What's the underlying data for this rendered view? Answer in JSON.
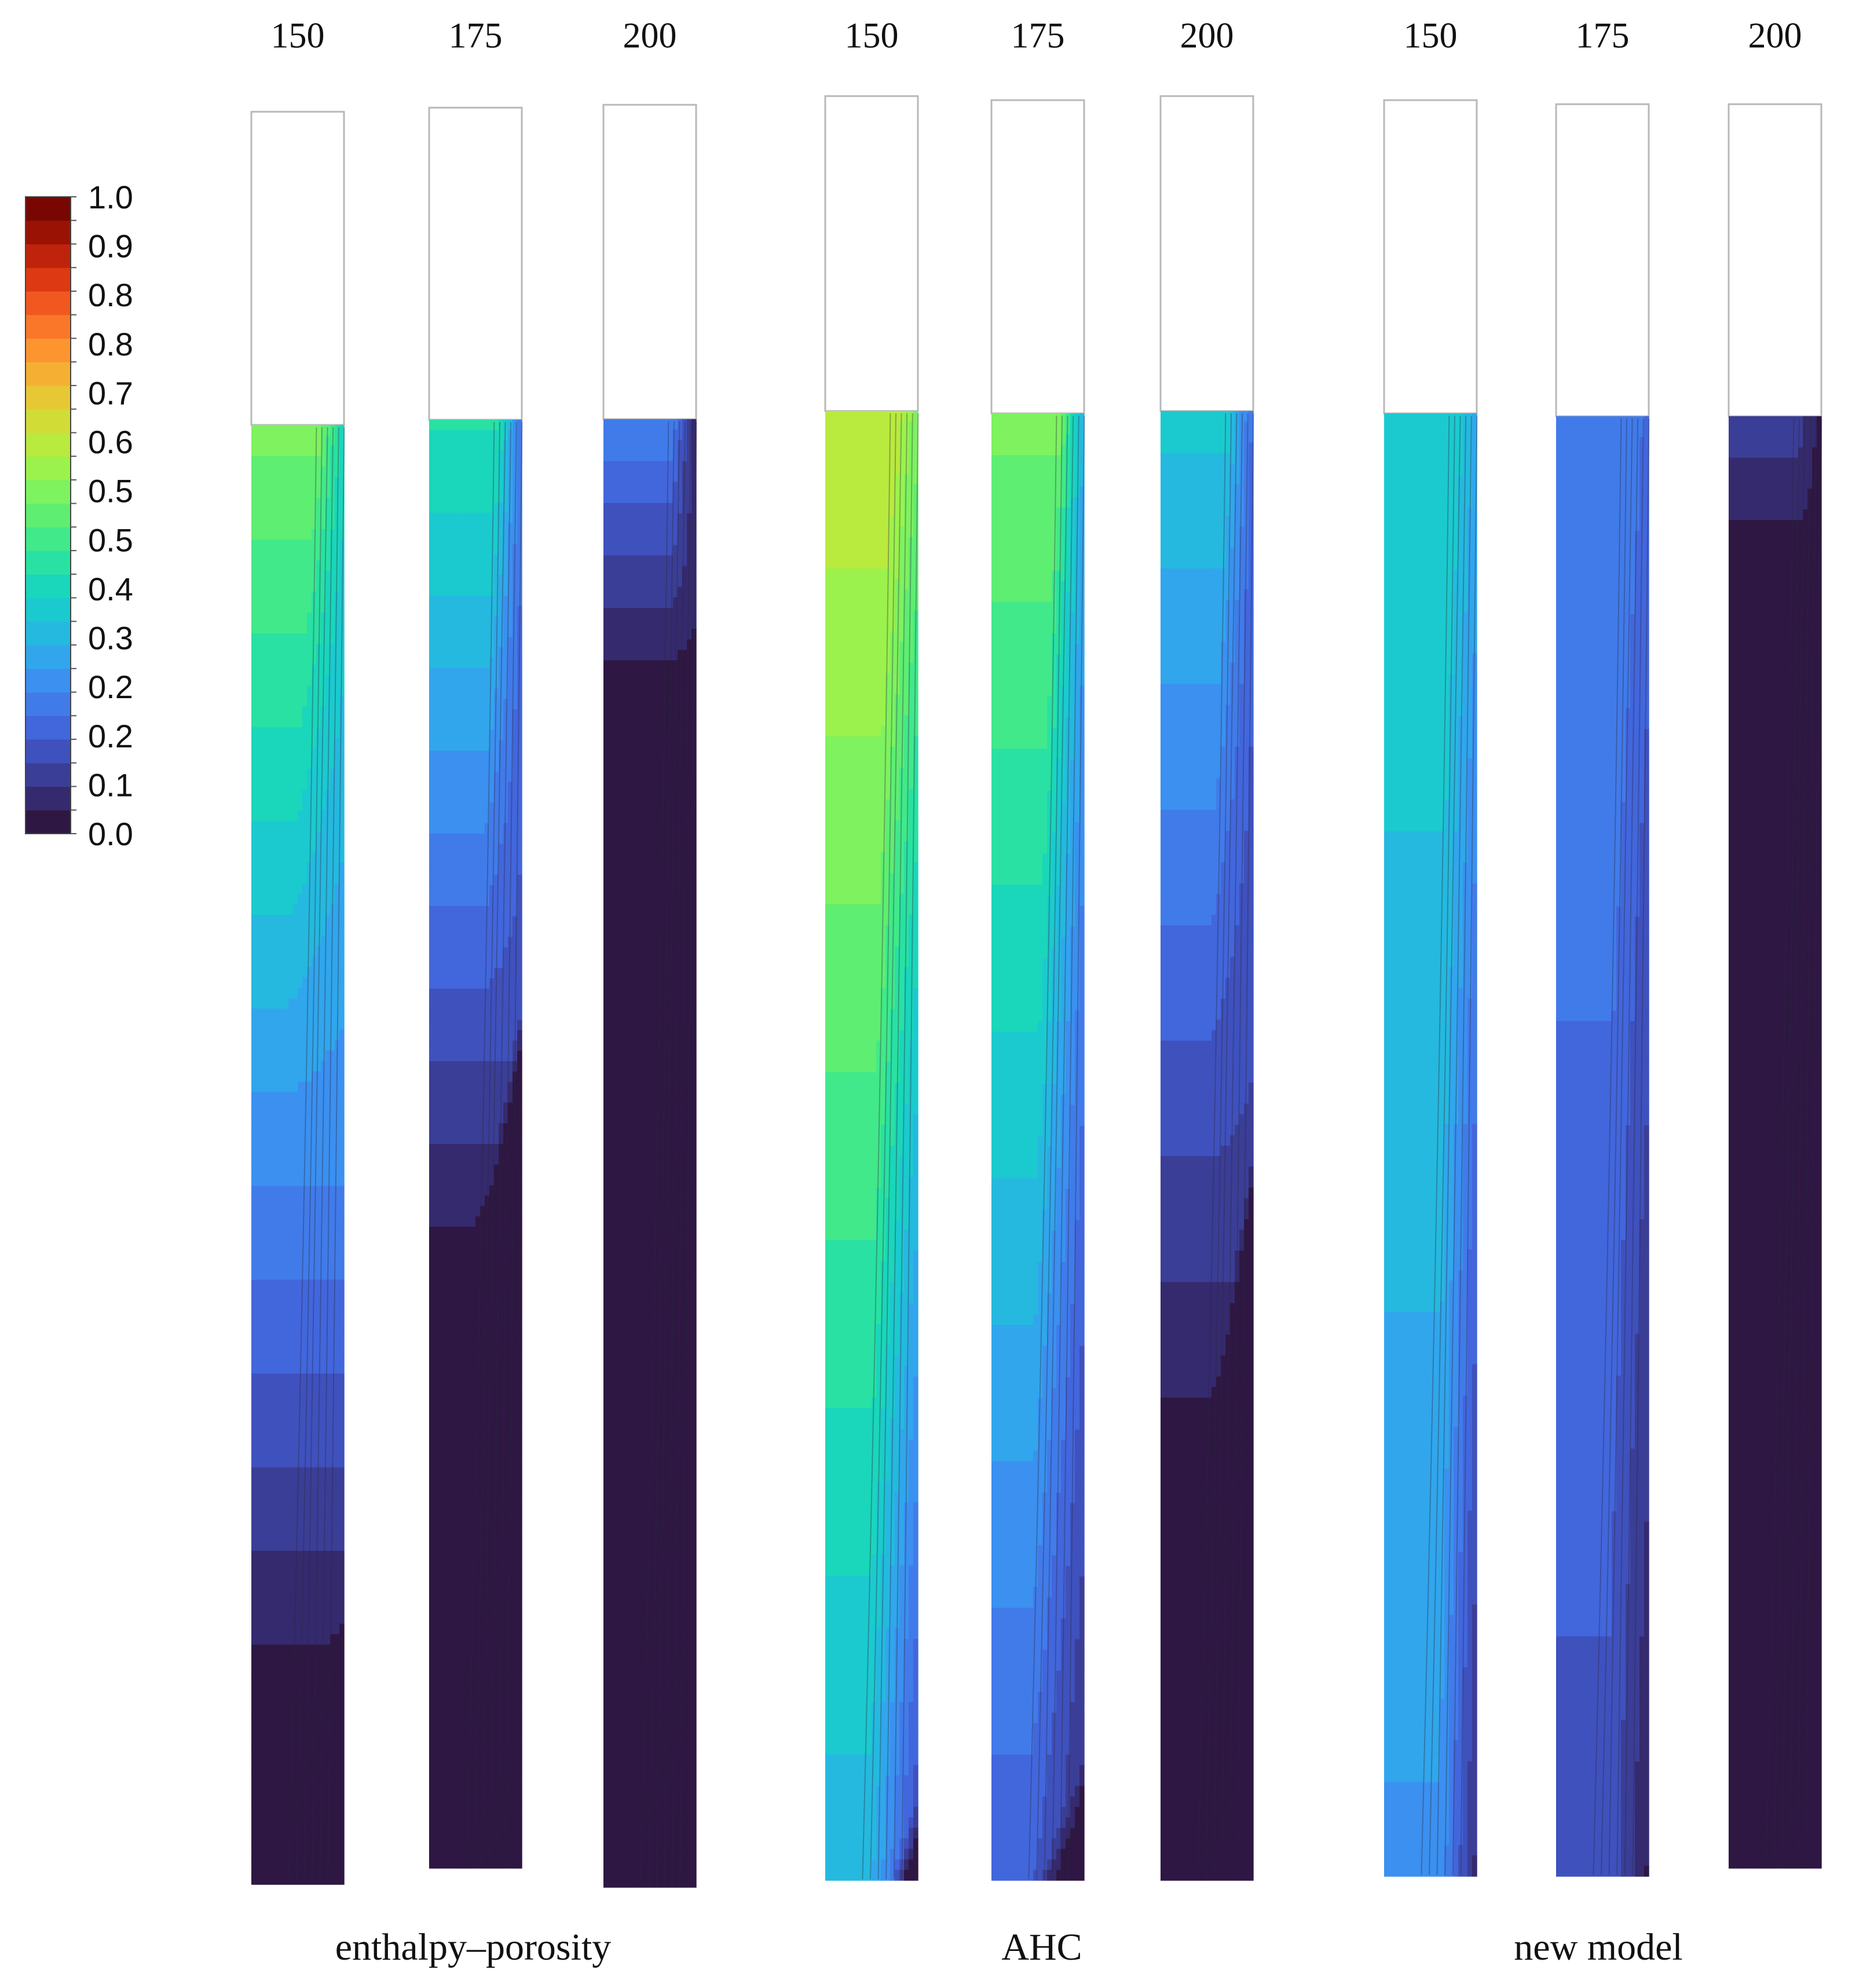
{
  "colorbar": {
    "tick_labels": [
      "1.0",
      "0.9",
      "0.8",
      "0.8",
      "0.7",
      "0.6",
      "0.5",
      "0.5",
      "0.4",
      "0.3",
      "0.2",
      "0.2",
      "0.1",
      "0.0"
    ],
    "range": [
      0,
      1
    ],
    "levels": 25,
    "palette": [
      "#2e1742",
      "#352a6e",
      "#3b3e96",
      "#3f51bd",
      "#4266dc",
      "#417bea",
      "#3b90f0",
      "#31a6ec",
      "#25b9df",
      "#1bcacf",
      "#1ad6bb",
      "#29e1a3",
      "#41e98a",
      "#5eee72",
      "#7ef25f",
      "#9cf24c",
      "#b9ea3e",
      "#d2dc37",
      "#e6c835",
      "#f5b033",
      "#fc9530",
      "#fa772a",
      "#f0581f",
      "#dd3a14",
      "#c0230b",
      "#9a1204",
      "#780701"
    ]
  },
  "groups": [
    {
      "label": "enthalpy–porosity",
      "columns": [
        {
          "label": "150",
          "top_value": 0.55,
          "wall_value": 0.4,
          "bottom_value": 0.0,
          "solid_front": 0.9,
          "spread": 0.8
        },
        {
          "label": "175",
          "top_value": 0.43,
          "wall_value": 0.2,
          "bottom_value": 0.0,
          "solid_front": 0.61,
          "spread": 0.4
        },
        {
          "label": "200",
          "top_value": 0.22,
          "wall_value": 0.05,
          "bottom_value": 0.0,
          "solid_front": 0.2,
          "spread": 0.1
        }
      ]
    },
    {
      "label": "AHC",
      "columns": [
        {
          "label": "150",
          "top_value": 0.65,
          "wall_value": 0.55,
          "bottom_value": 0.3,
          "solid_front": 1.05,
          "spread": 0.45
        },
        {
          "label": "175",
          "top_value": 0.55,
          "wall_value": 0.3,
          "bottom_value": 0.15,
          "solid_front": 1.02,
          "spread": 0.55
        },
        {
          "label": "200",
          "top_value": 0.36,
          "wall_value": 0.18,
          "bottom_value": 0.0,
          "solid_front": 0.75,
          "spread": 0.5
        }
      ]
    },
    {
      "label": "new model",
      "columns": [
        {
          "label": "150",
          "top_value": 0.38,
          "wall_value": 0.3,
          "bottom_value": 0.25,
          "solid_front": 1.1,
          "spread": 0.25
        },
        {
          "label": "175",
          "top_value": 0.23,
          "wall_value": 0.18,
          "bottom_value": 0.13,
          "solid_front": 1.1,
          "spread": 0.3
        },
        {
          "label": "200",
          "top_value": 0.1,
          "wall_value": 0.02,
          "bottom_value": 0.0,
          "solid_front": 0.12,
          "spread": 0.05
        }
      ]
    }
  ]
}
